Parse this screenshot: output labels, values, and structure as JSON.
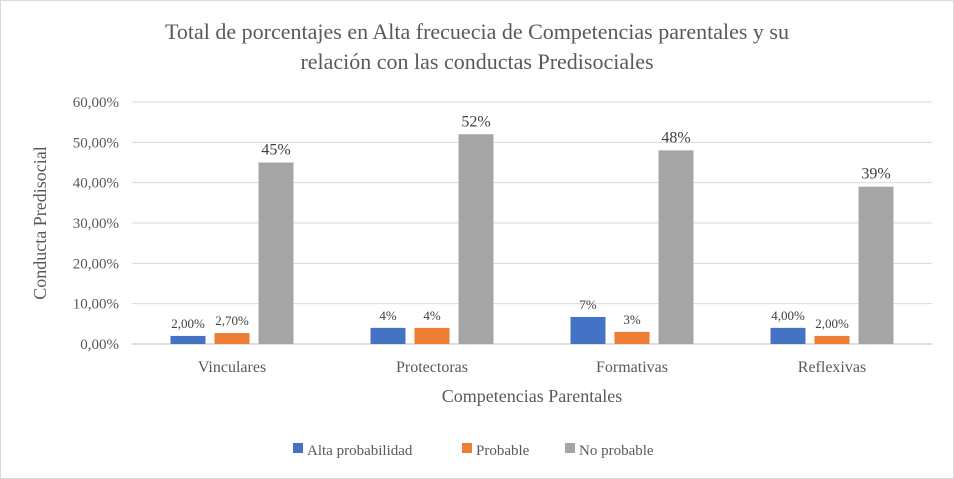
{
  "chart_data": {
    "type": "bar",
    "title_lines": [
      "Total de porcentajes en Alta frecuecia de Competencias parentales y su",
      "relación con las conductas Predisociales"
    ],
    "xlabel": "Competencias Parentales",
    "ylabel": "Conducta Predisocial",
    "ylim": [
      0,
      60
    ],
    "y_ticks": [
      "0,00%",
      "10,00%",
      "20,00%",
      "30,00%",
      "40,00%",
      "50,00%",
      "60,00%"
    ],
    "grid": true,
    "legend_position": "bottom",
    "categories": [
      "Vinculares",
      "Protectoras",
      "Formativas",
      "Reflexivas"
    ],
    "series": [
      {
        "name": "Alta probabilidad",
        "color": "#4472C4",
        "values": [
          2,
          4,
          6.7,
          4
        ],
        "labels": [
          "2,00%",
          "4%",
          "7%",
          "4,00%"
        ]
      },
      {
        "name": "Probable",
        "color": "#ED7D31",
        "values": [
          2.7,
          4,
          3,
          2
        ],
        "labels": [
          "2,70%",
          "4%",
          "3%",
          "2,00%"
        ]
      },
      {
        "name": "No probable",
        "color": "#A5A5A5",
        "values": [
          45,
          52,
          48,
          39
        ],
        "labels": [
          "45%",
          "52%",
          "48%",
          "39%"
        ]
      }
    ]
  }
}
